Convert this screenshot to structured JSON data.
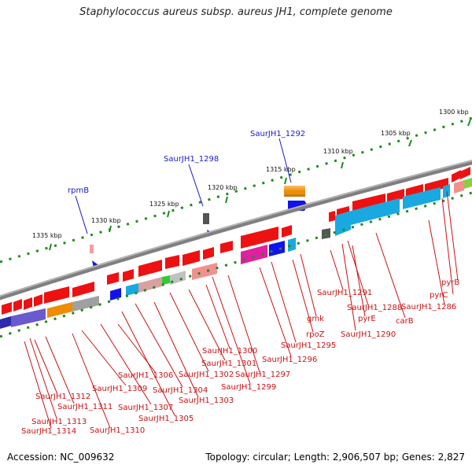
{
  "title": "Staphylococcus aureus subsp. aureus JH1, complete genome",
  "footer": {
    "accession": "Accession: NC_009632",
    "topology": "Topology: circular; Length: 2,906,507 bp; Genes: 2,827"
  },
  "scale_ticks": [
    "1300 kbp",
    "1305 kbp",
    "1310 kbp",
    "1315 kbp",
    "1320 kbp",
    "1325 kbp",
    "1330 kbp",
    "1335 kbp"
  ],
  "top_labels": [
    "SaurJH1_1292",
    "SaurJH1_1298",
    "rpmB"
  ],
  "gene_labels": [
    "pyrB",
    "pyrC",
    "SaurJH1_1286",
    "carB",
    "SaurJH1_1288",
    "pyrE",
    "SaurJH1_1290",
    "SaurJH1_1291",
    "gmk",
    "rpoZ",
    "SaurJH1_1295",
    "SaurJH1_1296",
    "SaurJH1_1297",
    "SaurJH1_1299",
    "SaurJH1_1300",
    "SaurJH1_1301",
    "SaurJH1_1302",
    "SaurJH1_1303",
    "SaurJH1_1304",
    "SaurJH1_1305",
    "SaurJH1_1306",
    "SaurJH1_1307",
    "SaurJH1_1309",
    "SaurJH1_1310",
    "SaurJH1_1311",
    "SaurJH1_1312",
    "SaurJH1_1313",
    "SaurJH1_1314"
  ],
  "colors": {
    "gene_red": "#ee1111",
    "top_label_blue": "#1a1acc",
    "label_red": "#cc1111",
    "tick_green": "#1f8a1f",
    "backbone_grey": "#808080"
  }
}
